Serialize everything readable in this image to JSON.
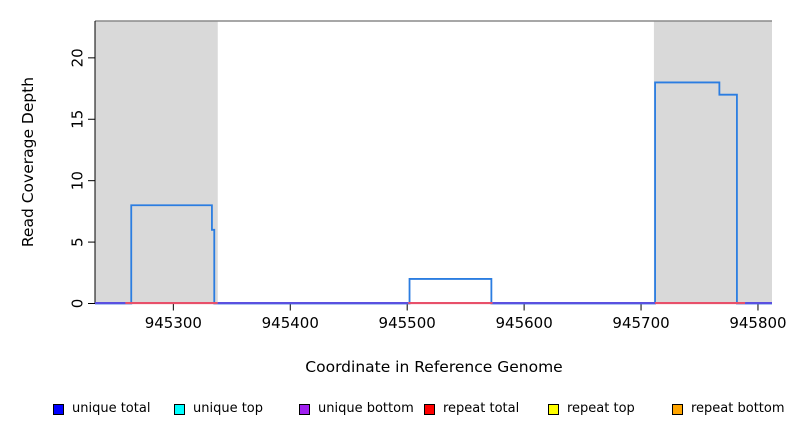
{
  "chart_data": {
    "type": "area",
    "title": "",
    "xlabel": "Coordinate in Reference Genome",
    "ylabel": "Read Coverage Depth",
    "xlim": [
      945233,
      945812
    ],
    "ylim": [
      0,
      23
    ],
    "xticks": [
      945300,
      945400,
      945500,
      945600,
      945700,
      945800
    ],
    "yticks": [
      0,
      5,
      10,
      15,
      20
    ],
    "grid": false,
    "legend_position": "bottom",
    "series_name": "unique total coverage",
    "series_color": "#2b7de1",
    "repeat_region_color": "#d9d9d9",
    "boundary_line": {
      "depth": 23,
      "color": "#8a8a8a"
    },
    "repeat_regions": [
      [
        945233,
        945338
      ],
      [
        945711,
        945812
      ]
    ],
    "coverage_steps": [
      {
        "from": 945233,
        "to": 945264,
        "depth": 0
      },
      {
        "from": 945264,
        "to": 945333,
        "depth": 8
      },
      {
        "from": 945333,
        "to": 945335,
        "depth": 6
      },
      {
        "from": 945335,
        "to": 945502,
        "depth": 0
      },
      {
        "from": 945502,
        "to": 945572,
        "depth": 2
      },
      {
        "from": 945572,
        "to": 945712,
        "depth": 0
      },
      {
        "from": 945712,
        "to": 945767,
        "depth": 18
      },
      {
        "from": 945767,
        "to": 945782,
        "depth": 17
      },
      {
        "from": 945782,
        "to": 945812,
        "depth": 0
      }
    ],
    "zero_line_segments": [
      {
        "from": 945233,
        "to": 945259,
        "color": "#5a50e0"
      },
      {
        "from": 945259,
        "to": 945338,
        "color": "#e8506a"
      },
      {
        "from": 945338,
        "to": 945501,
        "color": "#5a50e0"
      },
      {
        "from": 945501,
        "to": 945573,
        "color": "#e8506a"
      },
      {
        "from": 945573,
        "to": 945712,
        "color": "#5a50e0"
      },
      {
        "from": 945712,
        "to": 945789,
        "color": "#e8506a"
      },
      {
        "from": 945789,
        "to": 945812,
        "color": "#5a50e0"
      }
    ]
  },
  "legend": {
    "items": [
      {
        "label": "unique total",
        "fill": "#0000ff"
      },
      {
        "label": "unique top",
        "fill": "#00ffff"
      },
      {
        "label": "unique bottom",
        "fill": "#a020f0"
      },
      {
        "label": "repeat total",
        "fill": "#ff0000"
      },
      {
        "label": "repeat top",
        "fill": "#ffff00"
      },
      {
        "label": "repeat bottom",
        "fill": "#ffa500"
      }
    ]
  }
}
